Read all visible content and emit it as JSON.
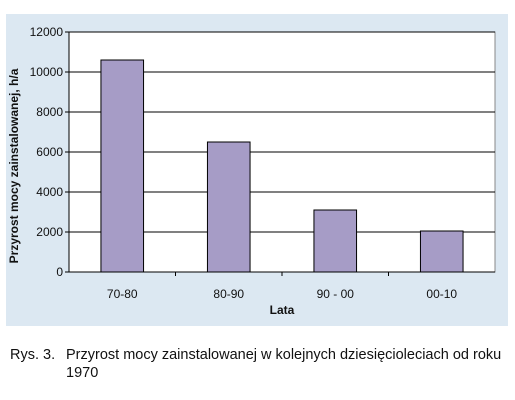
{
  "chart_data": {
    "type": "bar",
    "categories": [
      "70-80",
      "80-90",
      "90 - 00",
      "00-10"
    ],
    "values": [
      10600,
      6500,
      3100,
      2050
    ],
    "yticks": [
      0,
      2000,
      4000,
      6000,
      8000,
      10000,
      12000
    ],
    "ylim": [
      0,
      12000
    ],
    "xlabel": "Lata",
    "ylabel": "Przyrost mocy zainstalowanej, h/a",
    "grid": true,
    "bar_color": "#a69cc6",
    "plot_background": "#ffffff",
    "figure_background": "#dce8f2"
  },
  "caption": {
    "label": "Rys. 3.",
    "text": "Przyrost mocy zainstalowanej w kolejnych dziesięcioleciach od roku 1970"
  }
}
